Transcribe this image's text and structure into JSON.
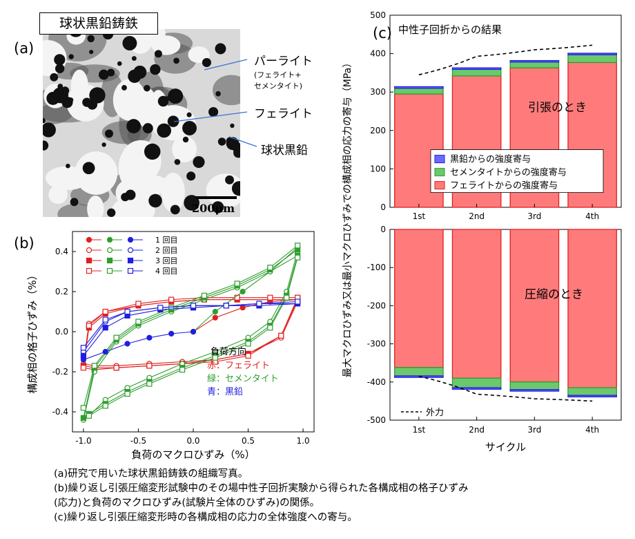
{
  "panel_a": {
    "label": "(a)",
    "title": "球状黒鉛鋳鉄",
    "annotations": {
      "pearlite": "パーライト",
      "pearlite_detail_1": "(フェライト+",
      "pearlite_detail_2": "セメンタイト)",
      "ferrite": "フェライト",
      "graphite": "球状黒鉛"
    },
    "scale_bar": "200μm"
  },
  "panel_b_label": "(b)",
  "panel_c_label": "(c)",
  "caption": [
    "(a)研究で用いた球状黒鉛鋳鉄の組織写真。",
    "(b)繰り返し引張圧縮変形試験中のその場中性子回折実験から得られた各構成相の格子ひずみ",
    "(応力)と負荷のマクロひずみ(試験片全体のひずみ)の関係。",
    "(c)繰り返し引張圧縮変形時の各構成相の応力の全体強度への寄与。"
  ],
  "colors": {
    "ferrite": "#e11f1f",
    "cementite": "#2e9e2e",
    "graphite": "#1f1fdd",
    "ferrite_fill": "#ff7b7b",
    "cementite_fill": "#6cc86c",
    "graphite_fill": "#6a6aff"
  },
  "chart_data": [
    {
      "id": "b",
      "type": "line",
      "xlabel": "負荷のマクロひずみ（%）",
      "ylabel": "構成相の格子ひずみ（%）",
      "xlim": [
        -1.1,
        1.1
      ],
      "ylim": [
        -0.5,
        0.5
      ],
      "xticks": [
        "-1.0",
        "-0.5",
        "0.0",
        "0.5",
        "1.0"
      ],
      "yticks": [
        "-0.4",
        "-0.2",
        "0.0",
        "0.2",
        "0.4"
      ],
      "legend_cycles": [
        "1 回目",
        "2 回目",
        "3 回目",
        "4 回目"
      ],
      "legend_phase_title": "負荷方向",
      "legend_phases": [
        "赤：フェライト",
        "緑：セメンタイト",
        "青：黒鉛"
      ],
      "series": [
        {
          "phase": "ferrite",
          "cycle": 1,
          "x": [
            0,
            0.2,
            0.45,
            0.7,
            0.95
          ],
          "y": [
            0,
            0.07,
            0.12,
            0.15,
            0.16
          ]
        },
        {
          "phase": "ferrite",
          "cycle": 2,
          "x": [
            0.95,
            0.8,
            0.5,
            0.2,
            -0.1,
            -0.4,
            -0.7,
            -0.9,
            -1.0,
            -0.95,
            -0.8,
            -0.5,
            -0.2,
            0.1,
            0.4,
            0.7,
            0.95
          ],
          "y": [
            0.15,
            -0.03,
            -0.11,
            -0.14,
            -0.15,
            -0.16,
            -0.17,
            -0.17,
            -0.16,
            0.04,
            0.1,
            0.13,
            0.15,
            0.16,
            0.16,
            0.16,
            0.16
          ]
        },
        {
          "phase": "ferrite",
          "cycle": 3,
          "x": [
            0.95,
            0.8,
            0.5,
            0.2,
            -0.1,
            -0.4,
            -0.7,
            -0.9,
            -1.0,
            -0.95,
            -0.8,
            -0.5,
            -0.2,
            0.1,
            0.4,
            0.7,
            0.95
          ],
          "y": [
            0.16,
            -0.02,
            -0.11,
            -0.14,
            -0.16,
            -0.17,
            -0.18,
            -0.18,
            -0.17,
            0.02,
            0.09,
            0.13,
            0.15,
            0.16,
            0.16,
            0.16,
            0.16
          ]
        },
        {
          "phase": "ferrite",
          "cycle": 4,
          "x": [
            0.95,
            0.8,
            0.5,
            0.2,
            -0.1,
            -0.4,
            -0.7,
            -0.9,
            -1.0,
            -0.95,
            -0.8,
            -0.5,
            -0.2,
            0.1,
            0.4,
            0.7,
            0.95
          ],
          "y": [
            0.17,
            -0.02,
            -0.12,
            -0.15,
            -0.16,
            -0.17,
            -0.18,
            -0.19,
            -0.18,
            0.03,
            0.1,
            0.14,
            0.16,
            0.17,
            0.17,
            0.17,
            0.17
          ]
        },
        {
          "phase": "cementite",
          "cycle": 1,
          "x": [
            0,
            0.2,
            0.45,
            0.7,
            0.95
          ],
          "y": [
            0,
            0.1,
            0.2,
            0.3,
            0.38
          ]
        },
        {
          "phase": "cementite",
          "cycle": 2,
          "x": [
            0.95,
            0.85,
            0.7,
            0.5,
            0.2,
            -0.1,
            -0.4,
            -0.6,
            -0.8,
            -0.95,
            -1.0,
            -0.9,
            -0.7,
            -0.5,
            -0.2,
            0.1,
            0.4,
            0.7,
            0.95
          ],
          "y": [
            0.4,
            0.2,
            0.05,
            -0.03,
            -0.1,
            -0.16,
            -0.23,
            -0.28,
            -0.34,
            -0.42,
            -0.44,
            -0.2,
            -0.05,
            0.03,
            0.1,
            0.16,
            0.22,
            0.3,
            0.42
          ]
        },
        {
          "phase": "cementite",
          "cycle": 3,
          "x": [
            0.95,
            0.85,
            0.7,
            0.5,
            0.2,
            -0.1,
            -0.4,
            -0.6,
            -0.8,
            -0.95,
            -1.0,
            -0.9,
            -0.7,
            -0.5,
            -0.2,
            0.1,
            0.4,
            0.7,
            0.95
          ],
          "y": [
            0.38,
            0.18,
            0.03,
            -0.05,
            -0.12,
            -0.18,
            -0.25,
            -0.3,
            -0.36,
            -0.41,
            -0.43,
            -0.18,
            -0.04,
            0.04,
            0.11,
            0.17,
            0.23,
            0.31,
            0.41
          ]
        },
        {
          "phase": "cementite",
          "cycle": 4,
          "x": [
            0.95,
            0.85,
            0.7,
            0.5,
            0.2,
            -0.1,
            -0.4,
            -0.6,
            -0.8,
            -0.95,
            -1.0,
            -0.9,
            -0.7,
            -0.5,
            -0.2,
            0.1,
            0.4,
            0.7,
            0.95
          ],
          "y": [
            0.37,
            0.17,
            0.02,
            -0.06,
            -0.13,
            -0.19,
            -0.26,
            -0.31,
            -0.37,
            -0.42,
            -0.38,
            -0.17,
            -0.03,
            0.05,
            0.12,
            0.18,
            0.24,
            0.32,
            0.43
          ]
        },
        {
          "phase": "graphite",
          "cycle": 1,
          "x": [
            0,
            -0.2,
            -0.4,
            -0.6,
            -0.8,
            -1.0
          ],
          "y": [
            0,
            -0.01,
            -0.03,
            -0.06,
            -0.1,
            -0.14
          ]
        },
        {
          "phase": "graphite",
          "cycle": 2,
          "x": [
            -1.0,
            -0.8,
            -0.6,
            -0.3,
            0,
            0.3,
            0.6,
            0.95
          ],
          "y": [
            -0.1,
            0.05,
            0.1,
            0.12,
            0.13,
            0.13,
            0.14,
            0.14
          ]
        },
        {
          "phase": "graphite",
          "cycle": 3,
          "x": [
            -1.0,
            -0.8,
            -0.6,
            -0.3,
            0,
            0.3,
            0.6,
            0.95
          ],
          "y": [
            -0.12,
            0.02,
            0.08,
            0.11,
            0.12,
            0.13,
            0.13,
            0.14
          ]
        },
        {
          "phase": "graphite",
          "cycle": 4,
          "x": [
            -1.0,
            -0.8,
            -0.6,
            -0.3,
            0,
            0.3,
            0.6,
            0.95
          ],
          "y": [
            -0.08,
            0.06,
            0.1,
            0.12,
            0.13,
            0.13,
            0.14,
            0.15
          ]
        }
      ]
    },
    {
      "id": "c",
      "type": "bar",
      "title": "中性子回折からの結果",
      "categories": [
        "1st",
        "2nd",
        "3rd",
        "4th"
      ],
      "xlabel": "サイクル",
      "ylabel": "最大マクロひずみ又は最小マクロひずみでの構成相の応力の寄与（MPa）",
      "top": {
        "ylim": [
          0,
          500
        ],
        "yticks": [
          "0",
          "100",
          "200",
          "300",
          "400",
          "500"
        ],
        "annotation": "引張のとき",
        "ferrite": [
          295,
          342,
          363,
          377
        ],
        "cementite": [
          15,
          17,
          15,
          20
        ],
        "graphite": [
          4,
          4,
          4,
          4
        ],
        "external_force": [
          345,
          393,
          410,
          422
        ]
      },
      "bottom": {
        "ylim": [
          -500,
          0
        ],
        "yticks": [
          "-500",
          "-400",
          "-300",
          "-200",
          "-100",
          "0"
        ],
        "annotation": "圧縮のとき",
        "ferrite": [
          -362,
          -390,
          -400,
          -415
        ],
        "cementite": [
          -22,
          -25,
          -20,
          -20
        ],
        "graphite": [
          -4,
          -4,
          -4,
          -4
        ],
        "external_force": [
          -385,
          -432,
          -444,
          -450
        ]
      },
      "legend": [
        "黒鉛からの強度寄与",
        "セメンタイトからの強度寄与",
        "フェライトからの強度寄与"
      ],
      "external_force_label": "外力"
    }
  ]
}
